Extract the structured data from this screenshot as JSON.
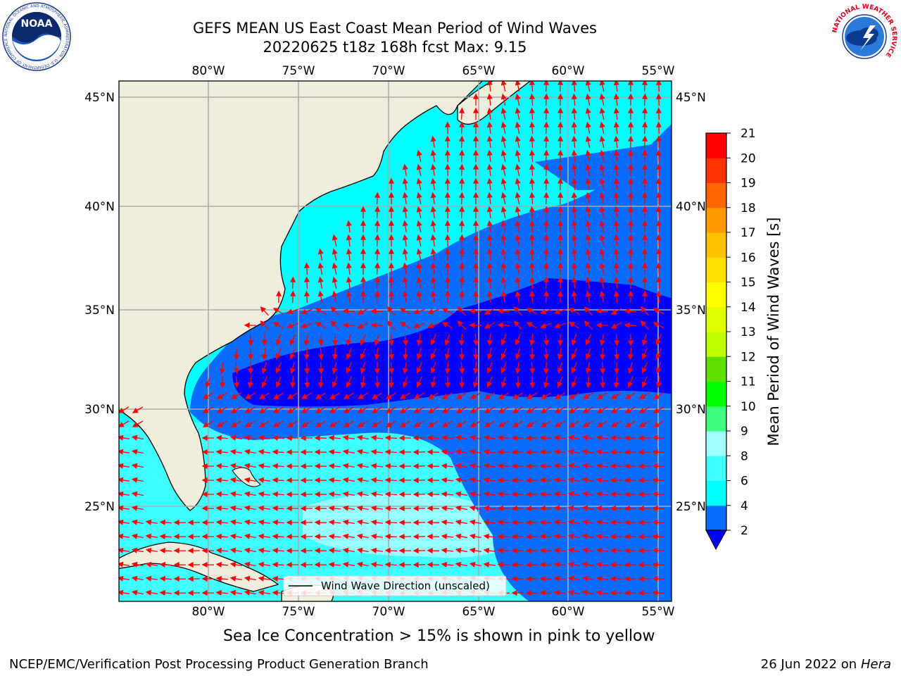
{
  "header": {
    "title_line1": "GEFS MEAN US East Coast Mean Period of Wind Waves",
    "title_line2": "20220625 t18z 168h fcst   Max: 9.15"
  },
  "logos": {
    "left": {
      "center_text": "NOAA",
      "ring_text": "NATIONAL OCEANIC AND ATMOSPHERIC ADMINISTRATION · U.S. DEPARTMENT OF COMMERCE"
    },
    "right": {
      "ring_text": "NATIONAL WEATHER SERVICE"
    }
  },
  "map": {
    "lon_ticks": [
      "80°W",
      "75°W",
      "70°W",
      "65°W",
      "60°W",
      "55°W"
    ],
    "lat_ticks": [
      "45°N",
      "40°N",
      "35°N",
      "30°N",
      "25°N"
    ],
    "legend_label": "Wind Wave Direction (unscaled)",
    "land_color": "#efeedc",
    "arrow_color": "#ff0000"
  },
  "colorbar": {
    "label": "Mean Period of Wind Waves [s]",
    "ticks": [
      "2",
      "4",
      "6",
      "8",
      "9",
      "10",
      "11",
      "12",
      "13",
      "14",
      "15",
      "16",
      "17",
      "18",
      "19",
      "20",
      "21"
    ],
    "under_color": "#0000ff",
    "colors": [
      "#0a6cff",
      "#00ffff",
      "#40ffff",
      "#a0ffff",
      "#40ff80",
      "#00ff00",
      "#60e000",
      "#c0ff00",
      "#e0ff00",
      "#ffff00",
      "#ffe000",
      "#ffc000",
      "#ff9900",
      "#ff6600",
      "#ff3300",
      "#ff0000"
    ]
  },
  "caption": "Sea Ice Concentration > 15% is shown in pink to yellow",
  "footer": {
    "left": "NCEP/EMC/Verification Post Processing Product Generation Branch",
    "right_date": "26 Jun 2022 on",
    "right_host": "Hera"
  }
}
